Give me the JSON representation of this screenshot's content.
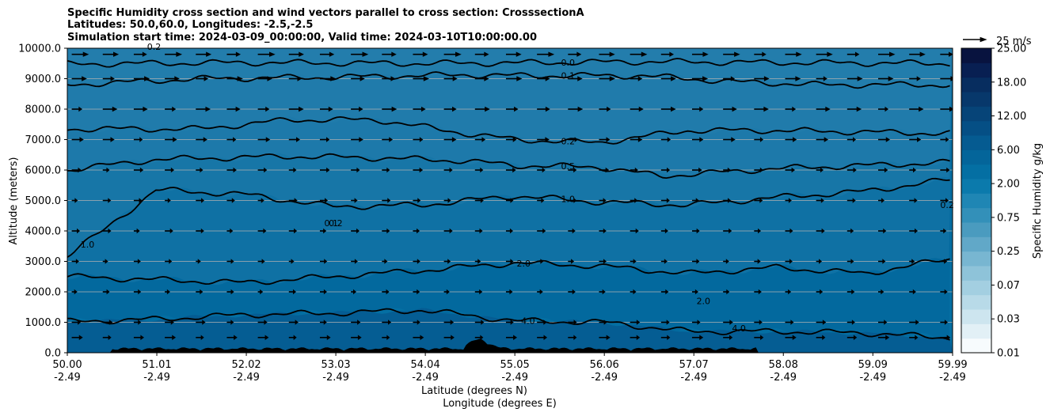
{
  "chart_data": {
    "type": "contourf",
    "title_lines": [
      "Specific Humidity cross section and wind vectors parallel to cross section: CrosssectionA",
      "Latitudes: 50.0,60.0, Longitudes: -2.5,-2.5",
      "Simulation start time: 2024-03-09_00:00:00, Valid time: 2024-03-10T10:00:00.00"
    ],
    "xlabel_lat": "Latitude (degrees N)",
    "xlabel_lon": "Longitude (degrees E)",
    "ylabel": "Altitude (meters)",
    "x_range": [
      50.0,
      59.99
    ],
    "y_range": [
      0,
      10000
    ],
    "x_ticks": [
      {
        "lat": "50.00",
        "lon": "-2.49",
        "v": 50.0
      },
      {
        "lat": "51.01",
        "lon": "-2.49",
        "v": 51.01
      },
      {
        "lat": "52.02",
        "lon": "-2.49",
        "v": 52.02
      },
      {
        "lat": "53.03",
        "lon": "-2.49",
        "v": 53.03
      },
      {
        "lat": "54.04",
        "lon": "-2.49",
        "v": 54.04
      },
      {
        "lat": "55.05",
        "lon": "-2.49",
        "v": 55.05
      },
      {
        "lat": "56.06",
        "lon": "-2.49",
        "v": 56.06
      },
      {
        "lat": "57.07",
        "lon": "-2.49",
        "v": 57.07
      },
      {
        "lat": "58.08",
        "lon": "-2.49",
        "v": 58.08
      },
      {
        "lat": "59.09",
        "lon": "-2.49",
        "v": 59.09
      },
      {
        "lat": "59.99",
        "lon": "-2.49",
        "v": 59.99
      }
    ],
    "y_ticks": [
      {
        "label": "0.0",
        "v": 0
      },
      {
        "label": "1000.0",
        "v": 1000
      },
      {
        "label": "2000.0",
        "v": 2000
      },
      {
        "label": "3000.0",
        "v": 3000
      },
      {
        "label": "4000.0",
        "v": 4000
      },
      {
        "label": "5000.0",
        "v": 5000
      },
      {
        "label": "6000.0",
        "v": 6000
      },
      {
        "label": "7000.0",
        "v": 7000
      },
      {
        "label": "8000.0",
        "v": 8000
      },
      {
        "label": "9000.0",
        "v": 9000
      },
      {
        "label": "10000.0",
        "v": 10000
      }
    ],
    "colorbar": {
      "label": "Specific Humidity g/kg",
      "tick_labels": [
        "0.01",
        "0.03",
        "0.07",
        "0.25",
        "0.75",
        "2.00",
        "6.00",
        "12.00",
        "18.00",
        "25.00"
      ],
      "colors": [
        "#f7fbfd",
        "#e2f0f6",
        "#cde5ef",
        "#b8dae8",
        "#a3cfe1",
        "#8ec3d9",
        "#78b6d1",
        "#61a8c8",
        "#4a9bbf",
        "#3390b9",
        "#1f86b4",
        "#0b7aac",
        "#046fa3",
        "#04659a",
        "#055b91",
        "#054f85",
        "#064478",
        "#07386b",
        "#072d5f",
        "#081f52",
        "#08133f"
      ]
    },
    "quiver_key": {
      "label": "25 m/s",
      "value": 25
    },
    "contour_levels": [
      {
        "level": 0.0,
        "alt_by_lat": [
          [
            50.0,
            9480
          ],
          [
            52.0,
            9530
          ],
          [
            54.0,
            9500
          ],
          [
            55.05,
            9520
          ],
          [
            56.5,
            9560
          ],
          [
            58.0,
            9530
          ],
          [
            59.99,
            9500
          ]
        ],
        "label": "0.0",
        "label_lat": 55.5
      },
      {
        "level": 0.1,
        "alt_by_lat": [
          [
            50.0,
            8800
          ],
          [
            51.5,
            9000
          ],
          [
            53.0,
            9050
          ],
          [
            54.5,
            9130
          ],
          [
            55.05,
            9100
          ],
          [
            56.5,
            9100
          ],
          [
            57.5,
            8900
          ],
          [
            58.5,
            8800
          ],
          [
            59.99,
            8800
          ]
        ],
        "label": "0.1",
        "label_lat": 55.5
      },
      {
        "level": 0.2,
        "alt_by_lat": [
          [
            50.0,
            7350
          ],
          [
            51.5,
            7350
          ],
          [
            52.5,
            7650
          ],
          [
            53.5,
            7650
          ],
          [
            54.5,
            7200
          ],
          [
            55.05,
            7000
          ],
          [
            56.0,
            6900
          ],
          [
            57.0,
            7300
          ],
          [
            58.0,
            7300
          ],
          [
            59.0,
            7250
          ],
          [
            59.99,
            7200
          ]
        ],
        "label": "0.2",
        "label_lat": 55.5
      },
      {
        "level": 0.5,
        "alt_by_lat": [
          [
            50.0,
            6000
          ],
          [
            51.0,
            6350
          ],
          [
            52.5,
            6450
          ],
          [
            53.5,
            6400
          ],
          [
            54.5,
            6300
          ],
          [
            55.05,
            6150
          ],
          [
            56.0,
            6100
          ],
          [
            56.7,
            5800
          ],
          [
            58.0,
            6050
          ],
          [
            59.99,
            6250
          ]
        ],
        "label": "0.5",
        "label_lat": 55.5
      },
      {
        "level": 1.0,
        "alt_by_lat": [
          [
            50.0,
            3200
          ],
          [
            50.4,
            4000
          ],
          [
            51.0,
            5350
          ],
          [
            52.0,
            5200
          ],
          [
            53.0,
            4800
          ],
          [
            54.0,
            4850
          ],
          [
            55.05,
            5150
          ],
          [
            56.0,
            4950
          ],
          [
            57.0,
            4850
          ],
          [
            58.0,
            5100
          ],
          [
            59.0,
            5300
          ],
          [
            59.99,
            5700
          ]
        ],
        "label": "1.0",
        "label_lat": 55.5
      },
      {
        "level": 2.0,
        "alt_by_lat": [
          [
            50.0,
            2500
          ],
          [
            51.0,
            2400
          ],
          [
            52.0,
            2300
          ],
          [
            53.0,
            2500
          ],
          [
            54.0,
            2700
          ],
          [
            55.05,
            2950
          ],
          [
            56.0,
            2850
          ],
          [
            57.0,
            2600
          ],
          [
            58.0,
            2800
          ],
          [
            59.0,
            2600
          ],
          [
            59.99,
            3100
          ]
        ],
        "label": "2.0",
        "label_lat": 55.0
      },
      {
        "level": 4.0,
        "alt_by_lat": [
          [
            50.0,
            1020
          ],
          [
            51.0,
            1100
          ],
          [
            52.0,
            1250
          ],
          [
            53.0,
            1300
          ],
          [
            54.0,
            1400
          ],
          [
            55.05,
            1050
          ],
          [
            56.06,
            1000
          ],
          [
            57.0,
            700
          ],
          [
            58.0,
            700
          ],
          [
            59.0,
            650
          ],
          [
            59.99,
            480
          ]
        ],
        "label": "4.0",
        "label_lat": 55.05
      }
    ],
    "extra_labels": [
      {
        "text": "0.1",
        "lat": 52.9,
        "alt": 4150
      },
      {
        "text": "0.2",
        "lat": 52.95,
        "alt": 4150
      },
      {
        "text": "1.0",
        "lat": 50.15,
        "alt": 3450
      },
      {
        "text": "0.2",
        "lat": 59.85,
        "alt": 4750
      },
      {
        "text": "2.0",
        "lat": 57.1,
        "alt": 1600
      },
      {
        "text": "4.0",
        "lat": 57.5,
        "alt": 700
      },
      {
        "text": "0.2",
        "lat": 50.9,
        "alt": 9950
      }
    ],
    "wind_u_ms_by_alt": [
      {
        "alt": 9800,
        "u": 14
      },
      {
        "alt": 9000,
        "u": 13
      },
      {
        "alt": 8000,
        "u": 12
      },
      {
        "alt": 7000,
        "u": 10
      },
      {
        "alt": 6000,
        "u": 8
      },
      {
        "alt": 5000,
        "u": 7
      },
      {
        "alt": 4000,
        "u": 7
      },
      {
        "alt": 3000,
        "u": 6
      },
      {
        "alt": 2000,
        "u": 6
      },
      {
        "alt": 1000,
        "u": 8
      },
      {
        "alt": 500,
        "u": 9
      }
    ]
  }
}
